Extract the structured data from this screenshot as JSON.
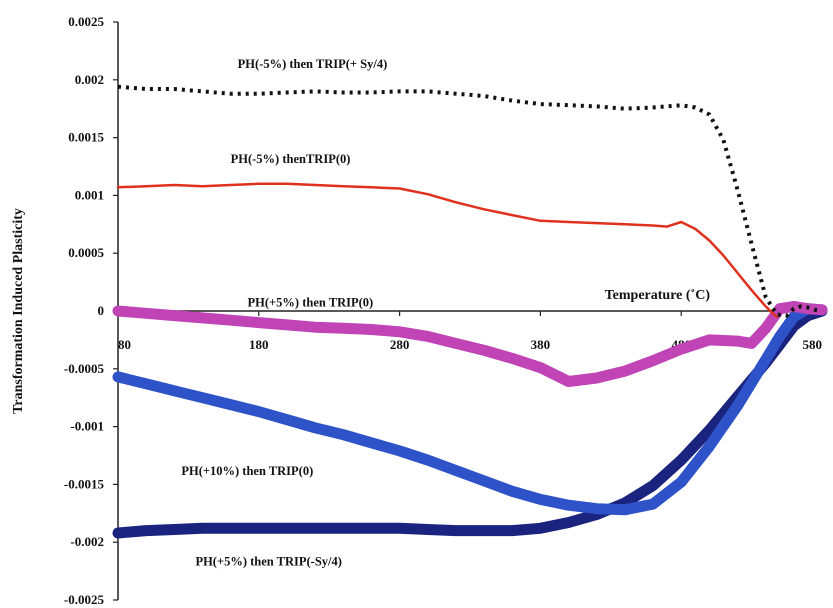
{
  "chart_data": {
    "type": "line",
    "title": "",
    "xlabel": "Temperature (˚C)",
    "ylabel": "Transformation Induced Plasticity",
    "xlim": [
      80,
      580
    ],
    "ylim": [
      -0.0025,
      0.0025
    ],
    "x_ticks": [
      80,
      180,
      280,
      380,
      480,
      580
    ],
    "x_tick_labels": [
      "80",
      "180",
      "280",
      "380",
      "480",
      "580"
    ],
    "y_ticks": [
      0.0025,
      0.002,
      0.0015,
      0.001,
      0.0005,
      0,
      -0.0005,
      -0.001,
      -0.0015,
      -0.002,
      -0.0025
    ],
    "y_tick_labels": [
      "0.0025",
      "0.002",
      "0.0015",
      "0.001",
      "0.0005",
      "0",
      "-0.0005",
      "-0.001",
      "-0.0015",
      "-0.002",
      "-0.0025"
    ],
    "grid": false,
    "legend": "none",
    "series": [
      {
        "name": "PH(-5%) then TRIP(+ Sy/4)",
        "color": "#111111",
        "style": "dotted",
        "x": [
          80,
          100,
          120,
          140,
          160,
          180,
          200,
          220,
          240,
          260,
          280,
          300,
          320,
          340,
          360,
          380,
          400,
          420,
          440,
          460,
          480,
          490,
          500,
          510,
          520,
          530,
          540,
          548,
          555,
          560,
          565,
          570,
          575,
          580
        ],
        "y": [
          0.00194,
          0.00192,
          0.00192,
          0.0019,
          0.00188,
          0.00188,
          0.00189,
          0.0019,
          0.00189,
          0.00189,
          0.0019,
          0.0019,
          0.00188,
          0.00186,
          0.00182,
          0.00179,
          0.00178,
          0.00177,
          0.00175,
          0.00176,
          0.00178,
          0.00176,
          0.0017,
          0.00148,
          0.00105,
          0.00058,
          0.00012,
          -3e-05,
          -4e-05,
          2e-05,
          4e-05,
          3e-05,
          1e-05,
          0
        ]
      },
      {
        "name": "PH(-5%) thenTRIP(0)",
        "color": "#e0301e",
        "style": "solid",
        "x": [
          80,
          100,
          120,
          140,
          160,
          180,
          200,
          220,
          240,
          260,
          280,
          300,
          320,
          340,
          360,
          380,
          400,
          420,
          440,
          460,
          470,
          480,
          490,
          500,
          510,
          520,
          530,
          540,
          545,
          548
        ],
        "y": [
          0.00107,
          0.00108,
          0.00109,
          0.00108,
          0.00109,
          0.0011,
          0.0011,
          0.00109,
          0.00108,
          0.00107,
          0.00106,
          0.00101,
          0.00094,
          0.00088,
          0.00083,
          0.00078,
          0.00077,
          0.00076,
          0.00075,
          0.00074,
          0.00073,
          0.00077,
          0.00071,
          0.00061,
          0.00048,
          0.00033,
          0.00018,
          4e-05,
          -2e-05,
          -5e-05
        ]
      },
      {
        "name": "PH(+5%) then TRIP(0)",
        "color": "#c044b6",
        "style": "thick",
        "x": [
          80,
          100,
          120,
          140,
          160,
          180,
          200,
          220,
          240,
          260,
          280,
          300,
          320,
          340,
          360,
          380,
          390,
          400,
          420,
          440,
          460,
          480,
          500,
          520,
          530,
          540,
          550,
          560,
          570,
          580
        ],
        "y": [
          0,
          -2e-05,
          -4e-05,
          -6e-05,
          -8e-05,
          -0.0001,
          -0.00012,
          -0.00014,
          -0.00015,
          -0.00016,
          -0.00018,
          -0.00022,
          -0.00028,
          -0.00034,
          -0.00041,
          -0.00049,
          -0.00055,
          -0.00061,
          -0.00058,
          -0.00052,
          -0.00043,
          -0.00033,
          -0.00025,
          -0.00026,
          -0.00028,
          -0.00015,
          2e-05,
          4e-05,
          2e-05,
          1e-05
        ]
      },
      {
        "name": "PH(+10%) then TRIP(0)",
        "color": "#2e52c8",
        "style": "thick",
        "x": [
          80,
          100,
          120,
          140,
          160,
          180,
          200,
          220,
          240,
          260,
          280,
          300,
          320,
          340,
          360,
          380,
          400,
          420,
          440,
          460,
          480,
          500,
          520,
          530,
          540,
          550,
          560,
          570,
          580
        ],
        "y": [
          -0.00057,
          -0.00063,
          -0.00069,
          -0.00075,
          -0.00081,
          -0.00087,
          -0.00094,
          -0.00101,
          -0.00107,
          -0.00114,
          -0.00121,
          -0.00129,
          -0.00138,
          -0.00147,
          -0.00156,
          -0.00163,
          -0.00168,
          -0.00171,
          -0.00172,
          -0.00167,
          -0.00148,
          -0.00117,
          -0.00082,
          -0.00062,
          -0.00042,
          -0.00022,
          -5e-05,
          2e-05,
          1e-05
        ]
      },
      {
        "name": "PH(+5%) then TRIP(-Sy/4)",
        "color": "#1a237e",
        "style": "thick",
        "x": [
          80,
          100,
          120,
          140,
          160,
          180,
          200,
          220,
          240,
          260,
          280,
          300,
          320,
          340,
          360,
          380,
          400,
          420,
          440,
          460,
          480,
          500,
          520,
          540,
          550,
          560,
          570,
          580
        ],
        "y": [
          -0.00192,
          -0.0019,
          -0.00189,
          -0.00188,
          -0.00188,
          -0.00188,
          -0.00188,
          -0.00188,
          -0.00188,
          -0.00188,
          -0.00188,
          -0.00189,
          -0.0019,
          -0.0019,
          -0.0019,
          -0.00188,
          -0.00183,
          -0.00176,
          -0.00166,
          -0.00151,
          -0.00129,
          -0.00103,
          -0.00074,
          -0.00045,
          -0.00029,
          -0.00013,
          -4e-05,
          0
        ]
      }
    ],
    "annotations": [
      {
        "text": "PH(-5%) then TRIP(+ Sy/4)",
        "x": 165,
        "y": 0.0021,
        "series": 0
      },
      {
        "text": "PH(-5%) thenTRIP(0)",
        "x": 160,
        "y": 0.00128,
        "series": 1
      },
      {
        "text": "PH(+5%) then TRIP(0)",
        "x": 172,
        "y": 4e-05,
        "series": 2
      },
      {
        "text": "PH(+10%) then TRIP(0)",
        "x": 125,
        "y": -0.00142,
        "series": 3
      },
      {
        "text": "PH(+5%) then TRIP(-Sy/4)",
        "x": 135,
        "y": -0.0022,
        "series": 4
      }
    ]
  }
}
